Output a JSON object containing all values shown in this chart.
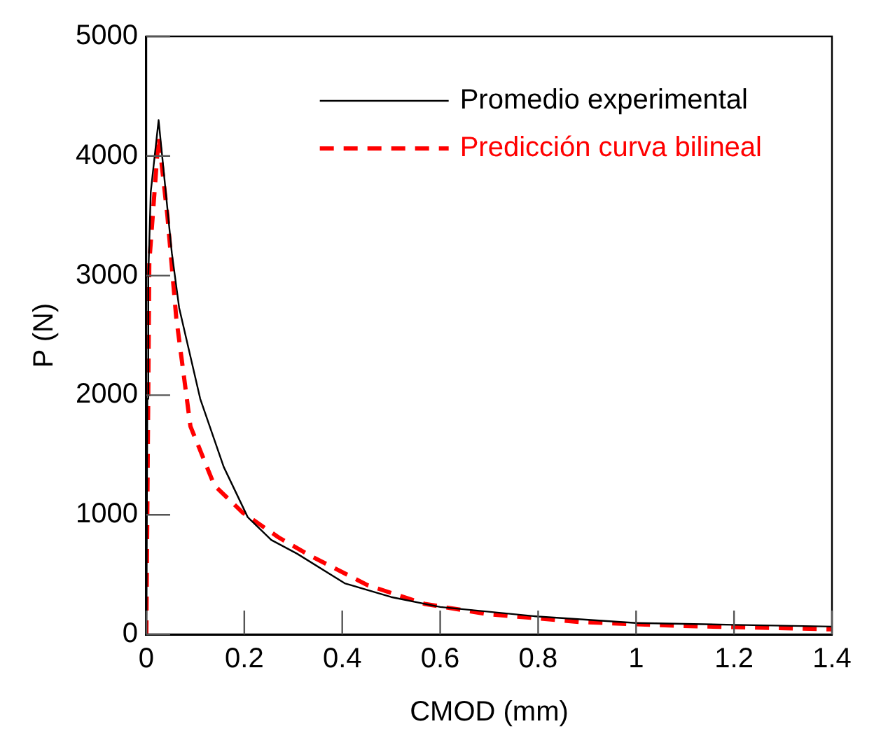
{
  "chart_data": {
    "type": "line",
    "xlabel": "CMOD (mm)",
    "ylabel": "P (N)",
    "xlim": [
      0,
      1.4
    ],
    "ylim": [
      0,
      5000
    ],
    "xticks": [
      0,
      0.2,
      0.4,
      0.6,
      0.8,
      1,
      1.2,
      1.4
    ],
    "yticks": [
      0,
      1000,
      2000,
      3000,
      4000,
      5000
    ],
    "grid": false,
    "legend": "top right",
    "marker": "none",
    "series": [
      {
        "name": "Promedio experimental",
        "color": "#000000",
        "line_style": "solid",
        "x": [
          0,
          0.002,
          0.004,
          0.009,
          0.025,
          0.052,
          0.067,
          0.11,
          0.158,
          0.207,
          0.255,
          0.308,
          0.405,
          0.5,
          0.6,
          0.8,
          1.0,
          1.2,
          1.4
        ],
        "values": [
          0,
          1970,
          3000,
          3700,
          4300,
          3190,
          2730,
          1970,
          1400,
          980,
          790,
          674,
          427,
          312,
          229,
          149,
          95,
          80,
          65
        ]
      },
      {
        "name": "Predicción curva bilineal",
        "color": "#ff0000",
        "line_style": "dashed",
        "x": [
          0,
          0.006,
          0.025,
          0.043,
          0.061,
          0.09,
          0.139,
          0.197,
          0.27,
          0.336,
          0.452,
          0.568,
          0.693,
          0.887,
          1.08,
          1.4
        ],
        "values": [
          0,
          3110,
          4160,
          3500,
          2650,
          1740,
          1245,
          1017,
          811,
          655,
          411,
          255,
          171,
          103,
          72,
          42
        ]
      }
    ]
  }
}
